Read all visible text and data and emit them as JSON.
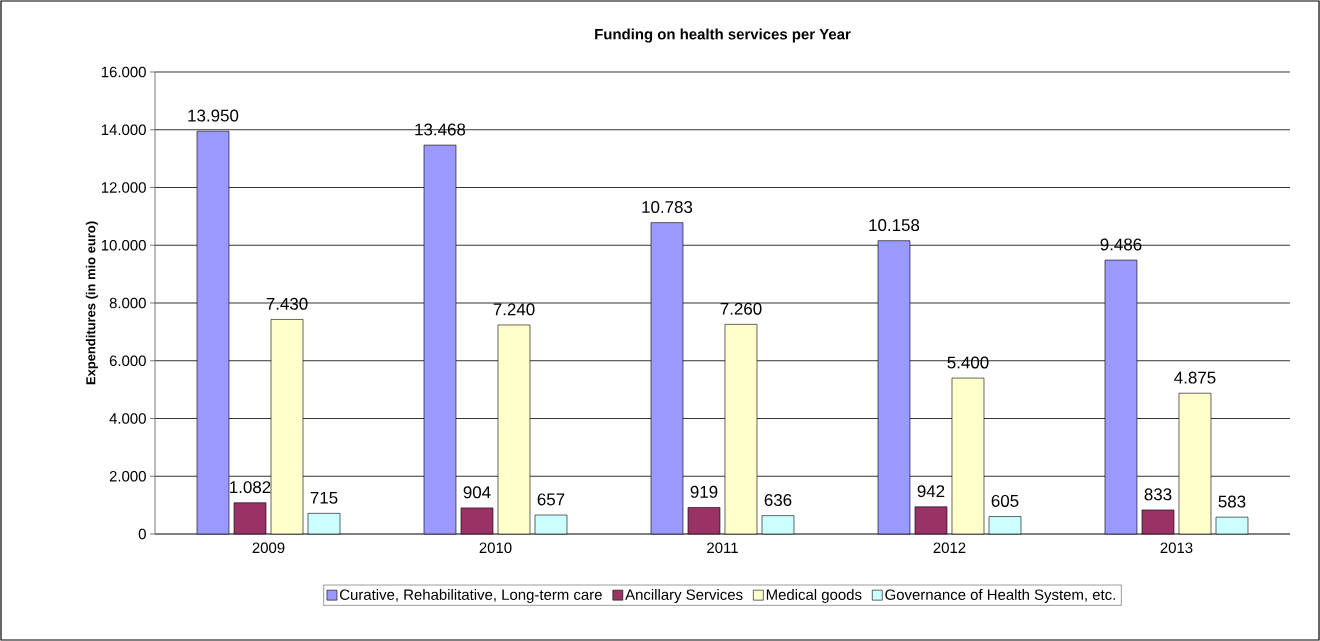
{
  "chart_data": {
    "type": "bar",
    "title": "Funding on health services per Year",
    "ylabel": "Expenditures (in mio euro)",
    "categories": [
      "2009",
      "2010",
      "2011",
      "2012",
      "2013"
    ],
    "series": [
      {
        "name": "Curative, Rehabilitative, Long-term care",
        "color": "#9999ff",
        "values": [
          13950,
          13468,
          10783,
          10158,
          9486
        ],
        "value_labels": [
          "13.950",
          "13.468",
          "10.783",
          "10.158",
          "9.486"
        ]
      },
      {
        "name": "Ancillary Services",
        "color": "#993366",
        "values": [
          1082,
          904,
          919,
          942,
          833
        ],
        "value_labels": [
          "1.082",
          "904",
          "919",
          "942",
          "833"
        ]
      },
      {
        "name": "Medical goods",
        "color": "#ffffcc",
        "values": [
          7430,
          7240,
          7260,
          5400,
          4875
        ],
        "value_labels": [
          "7.430",
          "7.240",
          "7.260",
          "5.400",
          "4.875"
        ]
      },
      {
        "name": "Governance of Health System, etc.",
        "color": "#ccffff",
        "values": [
          715,
          657,
          636,
          605,
          583
        ],
        "value_labels": [
          "715",
          "657",
          "636",
          "605",
          "583"
        ]
      }
    ],
    "ylim": [
      0,
      16000
    ],
    "yticks": [
      0,
      {
        "value": 2000,
        "label": "2.000"
      },
      {
        "value": 4000,
        "label": "4.000"
      },
      {
        "value": 6000,
        "label": "6.000"
      },
      {
        "value": 8000,
        "label": "8.000"
      },
      {
        "value": 10000,
        "label": "10.000"
      },
      {
        "value": 12000,
        "label": "12.000"
      },
      {
        "value": 14000,
        "label": "14.000"
      },
      {
        "value": 16000,
        "label": "16.000"
      }
    ],
    "grid": "y",
    "legend": "bottom"
  }
}
